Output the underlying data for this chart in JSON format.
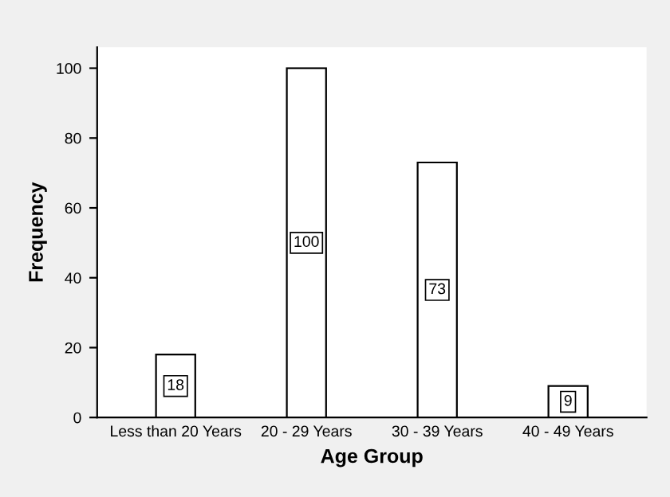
{
  "chart_data": {
    "type": "bar",
    "xlabel": "Age Group",
    "ylabel": "Frequency",
    "categories": [
      "Less than 20 Years",
      "20 - 29 Years",
      "30 - 39 Years",
      "40 - 49 Years"
    ],
    "values": [
      18,
      100,
      73,
      9
    ],
    "color": "#ffffff",
    "ylim": [
      0,
      106
    ],
    "yticks": [
      0,
      20,
      40,
      60,
      80,
      100
    ],
    "data_labels": true,
    "grid": false
  }
}
